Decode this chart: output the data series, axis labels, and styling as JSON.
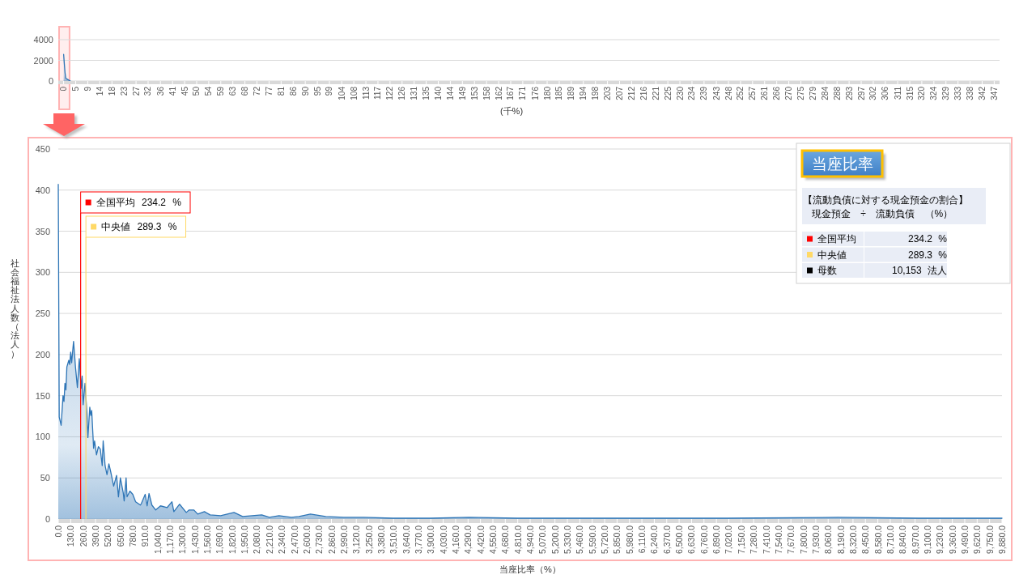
{
  "chart_data": [
    {
      "type": "area",
      "xlabel": "(千%)",
      "x": [
        0,
        0.5,
        0.8,
        1.5,
        2.5
      ],
      "series": [
        {
          "color": "#2e75b6",
          "values": [
            2570,
            840,
            260,
            150,
            0
          ]
        }
      ],
      "xlim": [
        -2,
        349
      ],
      "ylim": [
        0,
        4000
      ],
      "yticks": [
        0,
        2000,
        4000
      ],
      "grid": "y",
      "bands": [
        {
          "axis": "x",
          "from": -1.7,
          "to": 2.2,
          "color": "#ffb3b3"
        }
      ],
      "xticks": [
        0,
        {
          "value": 4.5,
          "label": "5"
        },
        {
          "value": 9.0,
          "label": "9"
        },
        {
          "value": 13.5,
          "label": "14"
        },
        {
          "value": 18.0,
          "label": "18"
        },
        {
          "value": 22.5,
          "label": "23"
        },
        {
          "value": 27.0,
          "label": "27"
        },
        {
          "value": 31.5,
          "label": "32"
        },
        {
          "value": 36.1,
          "label": "36"
        },
        {
          "value": 40.6,
          "label": "41"
        },
        {
          "value": 45.1,
          "label": "45"
        },
        {
          "value": 49.6,
          "label": "50"
        },
        {
          "value": 54.1,
          "label": "54"
        },
        {
          "value": 58.6,
          "label": "59"
        },
        {
          "value": 63.1,
          "label": "63"
        },
        {
          "value": 67.6,
          "label": "68"
        },
        {
          "value": 72.1,
          "label": "72"
        },
        {
          "value": 76.6,
          "label": "77"
        },
        {
          "value": 81.1,
          "label": "81"
        },
        {
          "value": 85.6,
          "label": "86"
        },
        {
          "value": 90.1,
          "label": "90"
        },
        {
          "value": 94.6,
          "label": "95"
        },
        {
          "value": 99.1,
          "label": "99"
        },
        {
          "value": 103.7,
          "label": "104"
        },
        {
          "value": 108.2,
          "label": "108"
        },
        {
          "value": 112.7,
          "label": "113"
        },
        {
          "value": 117.2,
          "label": "117"
        },
        {
          "value": 121.7,
          "label": "122"
        },
        {
          "value": 126.2,
          "label": "126"
        },
        {
          "value": 130.7,
          "label": "131"
        },
        {
          "value": 135.2,
          "label": "135"
        },
        {
          "value": 139.7,
          "label": "140"
        },
        {
          "value": 144.2,
          "label": "144"
        },
        {
          "value": 148.7,
          "label": "149"
        },
        {
          "value": 153.2,
          "label": "153"
        },
        {
          "value": 157.7,
          "label": "158"
        },
        {
          "value": 162.2,
          "label": "162"
        },
        {
          "value": 166.7,
          "label": "167"
        },
        {
          "value": 171.2,
          "label": "171"
        },
        {
          "value": 175.8,
          "label": "176"
        },
        {
          "value": 180.3,
          "label": "180"
        },
        {
          "value": 184.8,
          "label": "185"
        },
        {
          "value": 189.3,
          "label": "189"
        },
        {
          "value": 193.8,
          "label": "194"
        },
        {
          "value": 198.3,
          "label": "198"
        },
        {
          "value": 202.8,
          "label": "203"
        },
        {
          "value": 207.3,
          "label": "207"
        },
        {
          "value": 211.8,
          "label": "212"
        },
        {
          "value": 216.3,
          "label": "216"
        },
        {
          "value": 220.8,
          "label": "221"
        },
        {
          "value": 225.3,
          "label": "225"
        },
        {
          "value": 229.8,
          "label": "230"
        },
        {
          "value": 234.3,
          "label": "234"
        },
        {
          "value": 238.8,
          "label": "239"
        },
        {
          "value": 243.4,
          "label": "243"
        },
        {
          "value": 247.9,
          "label": "248"
        },
        {
          "value": 252.4,
          "label": "252"
        },
        {
          "value": 256.9,
          "label": "257"
        },
        {
          "value": 261.4,
          "label": "261"
        },
        {
          "value": 265.9,
          "label": "266"
        },
        {
          "value": 270.4,
          "label": "270"
        },
        {
          "value": 274.9,
          "label": "275"
        },
        {
          "value": 279.4,
          "label": "279"
        },
        {
          "value": 283.9,
          "label": "284"
        },
        {
          "value": 288.4,
          "label": "288"
        },
        {
          "value": 292.9,
          "label": "293"
        },
        {
          "value": 297.4,
          "label": "297"
        },
        {
          "value": 301.9,
          "label": "302"
        },
        {
          "value": 306.4,
          "label": "306"
        },
        {
          "value": 311.0,
          "label": "311"
        },
        {
          "value": 315.5,
          "label": "315"
        },
        {
          "value": 320.0,
          "label": "320"
        },
        {
          "value": 324.5,
          "label": "324"
        },
        {
          "value": 329.0,
          "label": "329"
        },
        {
          "value": 333.5,
          "label": "333"
        },
        {
          "value": 338.0,
          "label": "338"
        },
        {
          "value": 342.5,
          "label": "342"
        },
        347
      ]
    },
    {
      "type": "area",
      "xlabel": "当座比率（%）",
      "ylabel": "社会福祉法人数（法人）",
      "legend": "top left",
      "x": [
        0,
        10,
        30,
        50,
        60,
        70,
        80,
        90,
        110,
        120,
        130,
        140,
        160,
        180,
        200,
        220,
        240,
        250,
        260,
        280,
        300,
        310,
        330,
        340,
        350,
        370,
        380,
        400,
        420,
        440,
        460,
        470,
        490,
        510,
        530,
        550,
        580,
        610,
        630,
        650,
        680,
        690,
        710,
        720,
        750,
        780,
        810,
        860,
        870,
        910,
        930,
        950,
        980,
        1020,
        1070,
        1140,
        1190,
        1210,
        1270,
        1340,
        1370,
        1420,
        1460,
        1530,
        1590,
        1700,
        1840,
        1930,
        2130,
        2210,
        2310,
        2440,
        2520,
        2640,
        2800,
        2990,
        3200,
        3500,
        3900,
        4300,
        4800,
        5500,
        6000,
        6500,
        7000,
        8160,
        9000,
        9880
      ],
      "series": [
        {
          "color": "#2e75b6",
          "values": [
            407,
            124,
            114,
            150,
            143,
            165,
            157,
            185,
            193,
            188,
            203,
            190,
            216,
            185,
            160,
            195,
            159,
            174,
            139,
            165,
            129,
            99,
            136,
            126,
            132,
            86,
            95,
            78,
            88,
            85,
            65,
            95,
            65,
            54,
            67,
            57,
            40,
            53,
            27,
            50,
            32,
            22,
            50,
            27,
            34,
            30,
            21,
            17,
            19,
            30,
            16,
            31,
            17,
            11,
            16,
            14,
            21,
            9,
            18,
            8,
            11,
            11,
            6,
            9,
            5,
            4,
            8,
            3,
            5,
            2,
            4,
            2,
            3,
            6,
            3,
            2,
            2,
            1,
            1,
            2,
            1,
            1,
            1,
            1,
            1,
            2,
            1,
            1
          ]
        }
      ],
      "xlim": [
        0,
        9880
      ],
      "ylim": [
        0,
        450
      ],
      "yticks": [
        0,
        50,
        100,
        150,
        200,
        250,
        300,
        350,
        400,
        450
      ],
      "grid": "y",
      "ref_lines": [
        {
          "axis": "x",
          "value": 234.2,
          "label": "全国平均 234.2 %",
          "color": "#ff0000"
        },
        {
          "axis": "x",
          "value": 289.3,
          "label": "中央値 289.3 %",
          "color": "#ffd966"
        }
      ],
      "xticks": [
        {
          "value": 0,
          "label": "0.0"
        },
        {
          "value": 130,
          "label": "130.0"
        },
        {
          "value": 260,
          "label": "260.0"
        },
        {
          "value": 390,
          "label": "390.0"
        },
        {
          "value": 520,
          "label": "520.0"
        },
        {
          "value": 650,
          "label": "650.0"
        },
        {
          "value": 780,
          "label": "780.0"
        },
        {
          "value": 910,
          "label": "910.0"
        },
        {
          "value": 1040,
          "label": "1,040.0"
        },
        {
          "value": 1170,
          "label": "1,170.0"
        },
        {
          "value": 1300,
          "label": "1,300.0"
        },
        {
          "value": 1430,
          "label": "1,430.0"
        },
        {
          "value": 1560,
          "label": "1,560.0"
        },
        {
          "value": 1690,
          "label": "1,690.0"
        },
        {
          "value": 1820,
          "label": "1,820.0"
        },
        {
          "value": 1950,
          "label": "1,950.0"
        },
        {
          "value": 2080,
          "label": "2,080.0"
        },
        {
          "value": 2210,
          "label": "2,210.0"
        },
        {
          "value": 2340,
          "label": "2,340.0"
        },
        {
          "value": 2470,
          "label": "2,470.0"
        },
        {
          "value": 2600,
          "label": "2,600.0"
        },
        {
          "value": 2730,
          "label": "2,730.0"
        },
        {
          "value": 2860,
          "label": "2,860.0"
        },
        {
          "value": 2990,
          "label": "2,990.0"
        },
        {
          "value": 3120,
          "label": "3,120.0"
        },
        {
          "value": 3250,
          "label": "3,250.0"
        },
        {
          "value": 3380,
          "label": "3,380.0"
        },
        {
          "value": 3510,
          "label": "3,510.0"
        },
        {
          "value": 3640,
          "label": "3,640.0"
        },
        {
          "value": 3770,
          "label": "3,770.0"
        },
        {
          "value": 3900,
          "label": "3,900.0"
        },
        {
          "value": 4030,
          "label": "4,030.0"
        },
        {
          "value": 4160,
          "label": "4,160.0"
        },
        {
          "value": 4290,
          "label": "4,290.0"
        },
        {
          "value": 4420,
          "label": "4,420.0"
        },
        {
          "value": 4550,
          "label": "4,550.0"
        },
        {
          "value": 4680,
          "label": "4,680.0"
        },
        {
          "value": 4810,
          "label": "4,810.0"
        },
        {
          "value": 4940,
          "label": "4,940.0"
        },
        {
          "value": 5070,
          "label": "5,070.0"
        },
        {
          "value": 5200,
          "label": "5,200.0"
        },
        {
          "value": 5330,
          "label": "5,330.0"
        },
        {
          "value": 5460,
          "label": "5,460.0"
        },
        {
          "value": 5590,
          "label": "5,590.0"
        },
        {
          "value": 5720,
          "label": "5,720.0"
        },
        {
          "value": 5850,
          "label": "5,850.0"
        },
        {
          "value": 5980,
          "label": "5,980.0"
        },
        {
          "value": 6110,
          "label": "6,110.0"
        },
        {
          "value": 6240,
          "label": "6,240.0"
        },
        {
          "value": 6370,
          "label": "6,370.0"
        },
        {
          "value": 6500,
          "label": "6,500.0"
        },
        {
          "value": 6630,
          "label": "6,630.0"
        },
        {
          "value": 6760,
          "label": "6,760.0"
        },
        {
          "value": 6890,
          "label": "6,890.0"
        },
        {
          "value": 7020,
          "label": "7,020.0"
        },
        {
          "value": 7150,
          "label": "7,150.0"
        },
        {
          "value": 7280,
          "label": "7,280.0"
        },
        {
          "value": 7410,
          "label": "7,410.0"
        },
        {
          "value": 7540,
          "label": "7,540.0"
        },
        {
          "value": 7670,
          "label": "7,670.0"
        },
        {
          "value": 7800,
          "label": "7,800.0"
        },
        {
          "value": 7930,
          "label": "7,930.0"
        },
        {
          "value": 8060,
          "label": "8,060.0"
        },
        {
          "value": 8190,
          "label": "8,190.0"
        },
        {
          "value": 8320,
          "label": "8,320.0"
        },
        {
          "value": 8450,
          "label": "8,450.0"
        },
        {
          "value": 8580,
          "label": "8,580.0"
        },
        {
          "value": 8710,
          "label": "8,710.0"
        },
        {
          "value": 8840,
          "label": "8,840.0"
        },
        {
          "value": 8970,
          "label": "8,970.0"
        },
        {
          "value": 9100,
          "label": "9,100.0"
        },
        {
          "value": 9230,
          "label": "9,230.0"
        },
        {
          "value": 9360,
          "label": "9,360.0"
        },
        {
          "value": 9490,
          "label": "9,490.0"
        },
        {
          "value": 9620,
          "label": "9,620.0"
        },
        {
          "value": 9750,
          "label": "9,750.0"
        },
        {
          "value": 9880,
          "label": "9,880.0"
        }
      ]
    },
    {
      "type": "other",
      "title": "当座比率",
      "subtitle": "【流動負債に対する現金預金の割合】",
      "annotations": [
        "現金預金 ÷ 流動負債 （%）",
        "全国平均",
        "234.2 %",
        "中央値",
        "289.3 %",
        "母数",
        "10,153 法人"
      ],
      "colors": [
        "#ff0000",
        "#ffd966",
        "#000000"
      ]
    }
  ]
}
